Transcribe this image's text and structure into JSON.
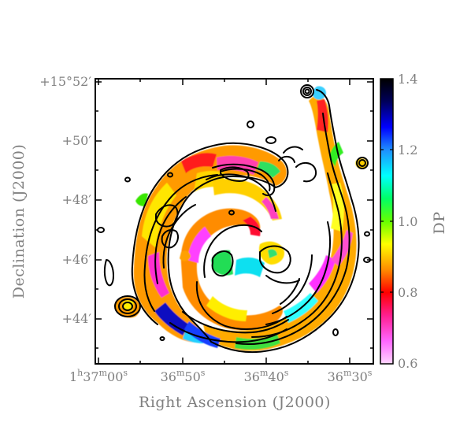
{
  "figure": {
    "x_axis_label": "Right Ascension (J2000)",
    "y_axis_label": "Declination (J2000)",
    "colorbar_label": "DP"
  },
  "x_ticks": [
    {
      "prefix": "1",
      "h": "h",
      "m_val": "37",
      "m": "m",
      "s_val": "00",
      "s": "s"
    },
    {
      "m_val": "36",
      "m": "m",
      "s_val": "50",
      "s": "s"
    },
    {
      "m_val": "36",
      "m": "m",
      "s_val": "40",
      "s": "s"
    },
    {
      "m_val": "36",
      "m": "m",
      "s_val": "30",
      "s": "s"
    }
  ],
  "y_ticks": [
    "+15°52′",
    "+50′",
    "+48′",
    "+46′",
    "+44′"
  ],
  "colorbar_ticks": [
    "1.4",
    "1.2",
    "1.0",
    "0.8",
    "0.6"
  ],
  "colorbar_range": [
    0.6,
    1.4
  ],
  "colormap_stops": [
    "#ffd6ff",
    "#ff66ff",
    "#ff1f8f",
    "#ff0000",
    "#ff8c00",
    "#ffff00",
    "#66ff00",
    "#00ff66",
    "#00ffff",
    "#1f8fff",
    "#0000ff",
    "#00005a",
    "#000000"
  ],
  "contour_color": "#000000"
}
